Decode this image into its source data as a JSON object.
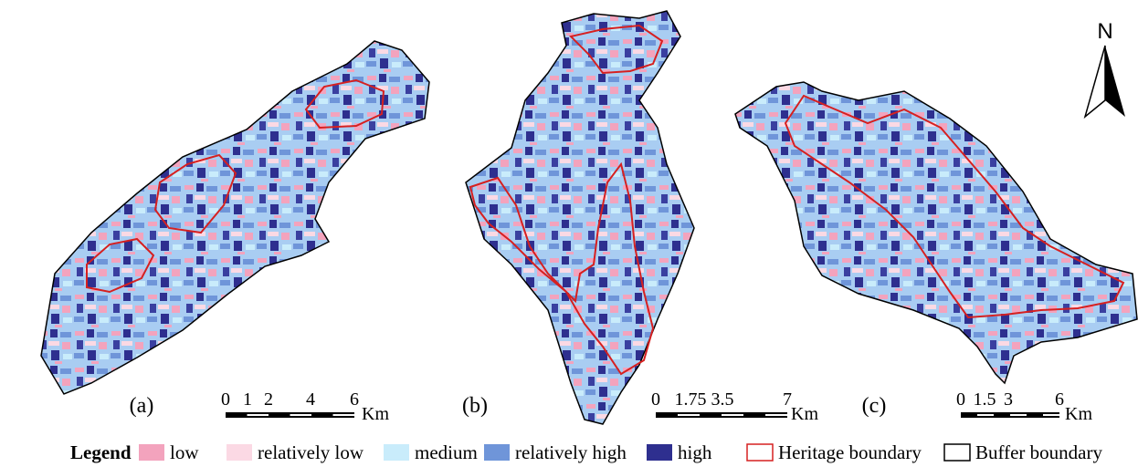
{
  "north": "N",
  "panels": [
    {
      "label": "(a)",
      "scale": {
        "ticks": [
          "0",
          "1",
          "2",
          "4",
          "6"
        ],
        "unit": "Km"
      }
    },
    {
      "label": "(b)",
      "scale": {
        "ticks": [
          "0",
          "1.75",
          "3.5",
          "7"
        ],
        "unit": "Km"
      }
    },
    {
      "label": "(c)",
      "scale": {
        "ticks": [
          "0",
          "1.5",
          "3",
          "6"
        ],
        "unit": "Km"
      }
    }
  ],
  "legend": {
    "title": "Legend",
    "items": [
      {
        "label": "low"
      },
      {
        "label": "relatively low"
      },
      {
        "label": "medium"
      },
      {
        "label": "relatively high"
      },
      {
        "label": "high"
      },
      {
        "label": "Heritage boundary"
      },
      {
        "label": "Buffer boundary"
      }
    ]
  }
}
